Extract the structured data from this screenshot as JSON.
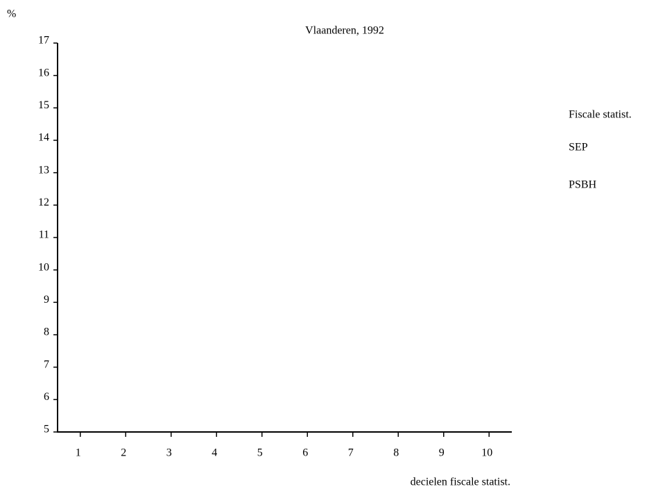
{
  "chart_data": {
    "type": "line",
    "title": "Vlaanderen, 1992",
    "y_label": "%",
    "x_label": "decielen fiscale statist.",
    "categories": [
      "1",
      "2",
      "3",
      "4",
      "5",
      "6",
      "7",
      "8",
      "9",
      "10"
    ],
    "series": [
      {
        "name": "Fiscale statist.",
        "values": [
          null,
          null,
          null,
          null,
          null,
          null,
          null,
          null,
          null,
          null
        ]
      },
      {
        "name": "SEP",
        "values": [
          null,
          null,
          null,
          null,
          null,
          null,
          null,
          null,
          null,
          null
        ]
      },
      {
        "name": "PSBH",
        "values": [
          null,
          null,
          null,
          null,
          null,
          null,
          null,
          null,
          null,
          null
        ]
      }
    ],
    "ylim": [
      5,
      17
    ],
    "yticks": [
      5,
      6,
      7,
      8,
      9,
      10,
      11,
      12,
      13,
      14,
      15,
      16,
      17
    ]
  }
}
